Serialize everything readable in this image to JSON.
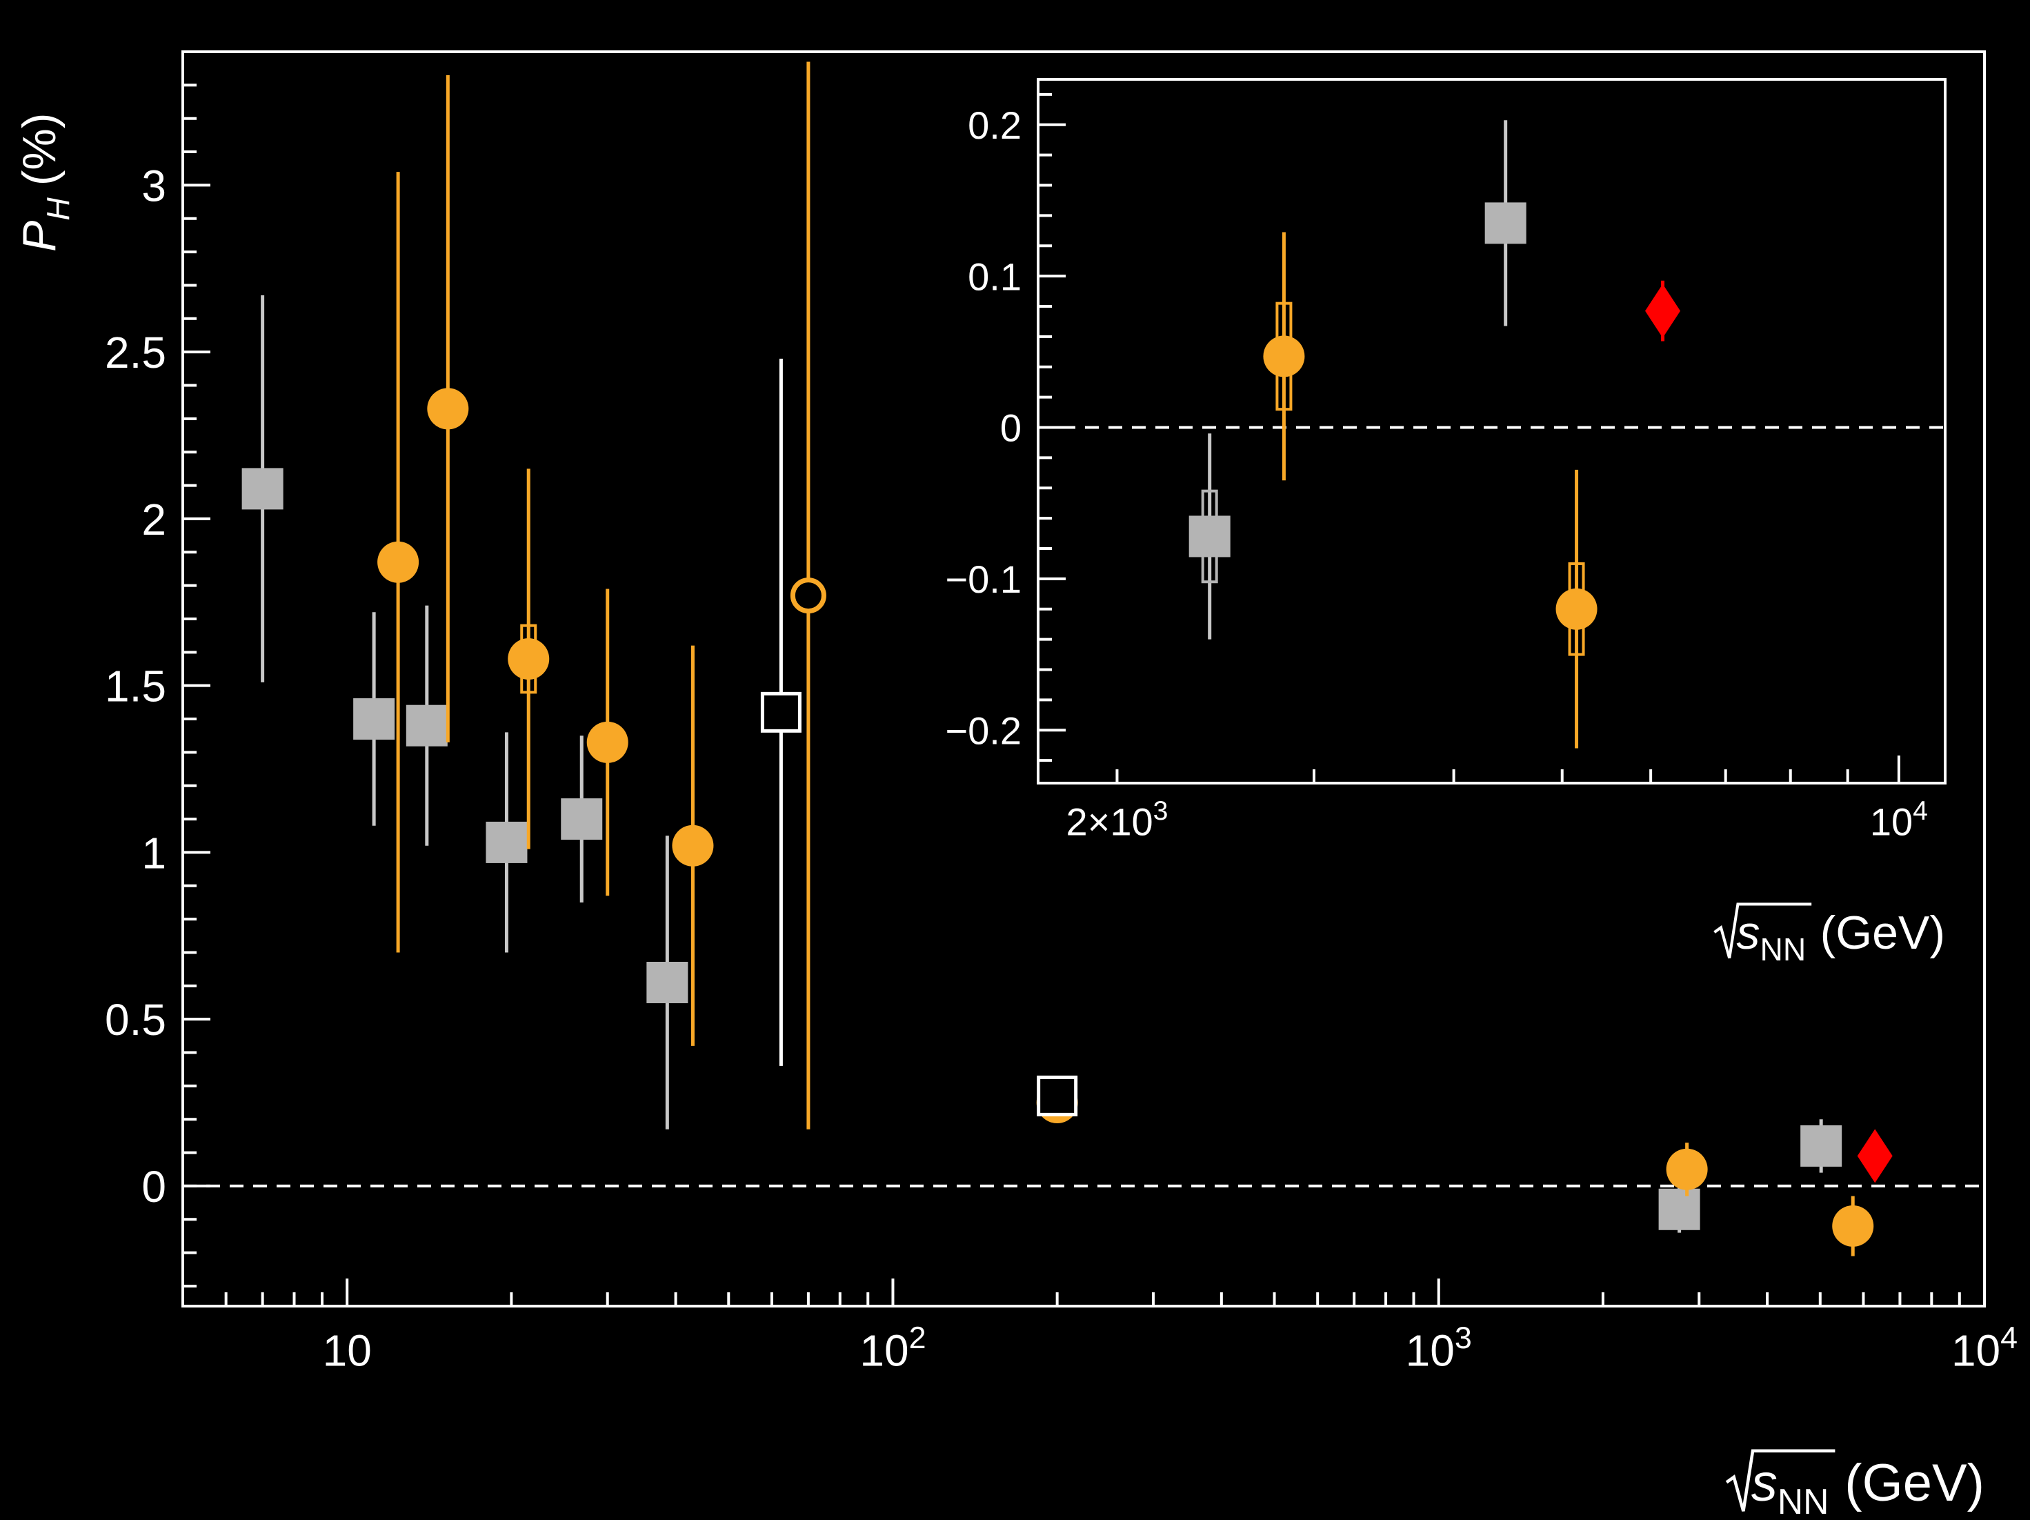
{
  "chart_data": [
    {
      "type": "scatter",
      "title": "",
      "xlabel": {
        "base": "s",
        "sub": "NN",
        "unit": "(GeV)"
      },
      "ylabel": {
        "base": "P",
        "sub": "H",
        "unit": "(%)"
      },
      "xscale": "log",
      "xlim": [
        5,
        10000
      ],
      "ylim": [
        -0.36,
        3.4
      ],
      "xticks": [
        {
          "value": 10,
          "label": "10"
        },
        {
          "value": 100,
          "label": "10",
          "exp": "2"
        },
        {
          "value": 1000,
          "label": "10",
          "exp": "3"
        },
        {
          "value": 10000,
          "label": "10",
          "exp": "4"
        }
      ],
      "yticks": [
        {
          "value": 0,
          "label": "0"
        },
        {
          "value": 0.5,
          "label": "0.5"
        },
        {
          "value": 1,
          "label": "1"
        },
        {
          "value": 1.5,
          "label": "1.5"
        },
        {
          "value": 2,
          "label": "2"
        },
        {
          "value": 2.5,
          "label": "2.5"
        },
        {
          "value": 3,
          "label": "3"
        }
      ],
      "reference_line": {
        "y": 0,
        "style": "dashed"
      },
      "grid": false,
      "legend": "none",
      "series": [
        {
          "marker": "square-filled",
          "color": "#b4b4b4",
          "points": [
            {
              "x": 7.0,
              "y": 2.09,
              "err": 0.58
            },
            {
              "x": 11.2,
              "y": 1.4,
              "err": 0.32
            },
            {
              "x": 14.0,
              "y": 1.38,
              "err": 0.36
            },
            {
              "x": 19.6,
              "y": 1.03,
              "err": 0.33
            },
            {
              "x": 26.9,
              "y": 1.1,
              "err": 0.25
            },
            {
              "x": 38.6,
              "y": 0.61,
              "err": 0.44
            },
            {
              "x": 2760,
              "y": -0.07,
              "err": 0.07
            },
            {
              "x": 5020,
              "y": 0.12,
              "err": 0.08
            }
          ]
        },
        {
          "marker": "circle-filled",
          "color": "#f8a827",
          "points": [
            {
              "x": 12.4,
              "y": 1.87,
              "err": 1.17
            },
            {
              "x": 15.3,
              "y": 2.33,
              "err": 1.0
            },
            {
              "x": 21.5,
              "y": 1.58,
              "err": 0.57,
              "syst": 0.1
            },
            {
              "x": 30.0,
              "y": 1.33,
              "err": 0.46
            },
            {
              "x": 43.0,
              "y": 1.02,
              "err": 0.6
            },
            {
              "x": 200,
              "y": 0.25,
              "err": 0.06
            },
            {
              "x": 2850,
              "y": 0.05,
              "err": 0.08
            },
            {
              "x": 5740,
              "y": -0.12,
              "err": 0.09
            }
          ]
        },
        {
          "marker": "square-open",
          "color": "#ffffff",
          "points": [
            {
              "x": 62.4,
              "y": 1.42,
              "err": 1.06
            },
            {
              "x": 200,
              "y": 0.27,
              "err": 0.05
            }
          ]
        },
        {
          "marker": "circle-open",
          "color": "#f8a827",
          "points": [
            {
              "x": 70.0,
              "y": 1.77,
              "err": 1.6
            }
          ]
        },
        {
          "marker": "diamond-filled",
          "color": "#ff0000",
          "points": [
            {
              "x": 6300,
              "y": 0.09,
              "err": 0.02
            }
          ]
        }
      ]
    },
    {
      "type": "scatter",
      "title": "",
      "xlabel": {
        "base": "s",
        "sub": "NN",
        "unit": "(GeV)"
      },
      "ylabel": "",
      "xscale": "log",
      "xlim": [
        1700,
        11000
      ],
      "ylim": [
        -0.235,
        0.23
      ],
      "xticks": [
        {
          "value": 2000,
          "label": "2×10",
          "exp": "3"
        },
        {
          "value": 10000,
          "label": "10",
          "exp": "4"
        }
      ],
      "yticks": [
        {
          "value": -0.2,
          "label": "−0.2"
        },
        {
          "value": -0.1,
          "label": "−0.1"
        },
        {
          "value": 0,
          "label": "0"
        },
        {
          "value": 0.1,
          "label": "0.1"
        },
        {
          "value": 0.2,
          "label": "0.2"
        }
      ],
      "reference_line": {
        "y": 0,
        "style": "dashed"
      },
      "grid": false,
      "legend": "none",
      "series": [
        {
          "marker": "square-filled",
          "color": "#b4b4b4",
          "points": [
            {
              "x": 2420,
              "y": -0.072,
              "err": 0.068,
              "syst": 0.03
            },
            {
              "x": 4450,
              "y": 0.135,
              "err": 0.068
            }
          ]
        },
        {
          "marker": "circle-filled",
          "color": "#f8a827",
          "points": [
            {
              "x": 2820,
              "y": 0.047,
              "err": 0.082,
              "syst": 0.035
            },
            {
              "x": 5150,
              "y": -0.12,
              "err": 0.092,
              "syst": 0.03
            }
          ]
        },
        {
          "marker": "diamond-filled",
          "color": "#ff0000",
          "points": [
            {
              "x": 6150,
              "y": 0.077,
              "err": 0.02
            }
          ]
        }
      ]
    }
  ]
}
